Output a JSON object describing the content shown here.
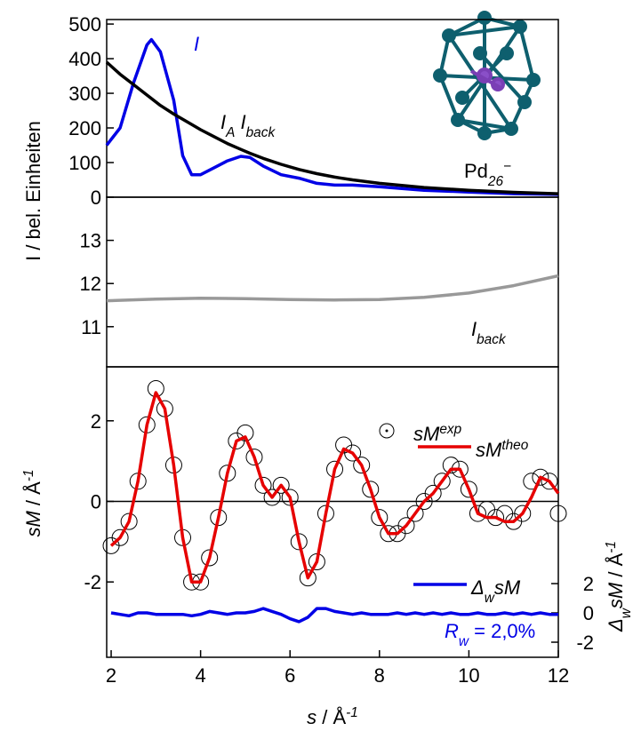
{
  "chart_data": [
    {
      "type": "line",
      "ylabel": [
        {
          "text": "I / bel. Einheiten"
        }
      ],
      "xlim": [
        1.9,
        12
      ],
      "ylim": [
        0,
        513
      ],
      "yticks": [
        0,
        100,
        200,
        300,
        400,
        500
      ],
      "x": [
        1.9,
        2.2,
        2.5,
        2.8,
        2.9,
        3.1,
        3.4,
        3.6,
        3.8,
        4.0,
        4.3,
        4.6,
        4.9,
        5.1,
        5.4,
        5.8,
        6.2,
        6.6,
        7,
        7.4,
        8,
        9,
        10,
        11,
        12
      ],
      "series": [
        {
          "color": "#0000e6",
          "values": [
            150,
            200,
            330,
            440,
            455,
            420,
            280,
            120,
            65,
            65,
            85,
            105,
            118,
            115,
            90,
            65,
            55,
            40,
            35,
            35,
            30,
            20,
            15,
            10,
            8
          ]
        },
        {
          "color": "#000000",
          "values": [
            390,
            355,
            325,
            295,
            285,
            265,
            240,
            225,
            210,
            195,
            175,
            155,
            138,
            127,
            112,
            95,
            80,
            68,
            58,
            50,
            40,
            28,
            20,
            14,
            10
          ]
        }
      ],
      "annotations": [
        {
          "color": "#0000e6",
          "parts": [
            {
              "text": "I",
              "style": "italic"
            }
          ]
        },
        {
          "color": "#000000",
          "parts": [
            {
              "text": "I",
              "style": "italic"
            },
            {
              "text": "A",
              "style": "sub"
            },
            {
              "text": " I",
              "style": "italic"
            },
            {
              "text": "back",
              "style": "sub"
            }
          ]
        },
        {
          "color": "#000000",
          "parts": [
            {
              "text": "Pd"
            },
            {
              "text": "26",
              "style": "sub"
            },
            {
              "text": "−",
              "style": "sup"
            }
          ]
        }
      ]
    },
    {
      "type": "line",
      "xlim": [
        1.9,
        12
      ],
      "ylim": [
        10.07,
        14
      ],
      "yticks": [
        11,
        12,
        13
      ],
      "x": [
        1.9,
        3,
        4,
        5,
        6,
        7,
        8,
        9,
        10,
        11,
        12
      ],
      "series": [
        {
          "color": "#999999",
          "values": [
            11.6,
            11.64,
            11.66,
            11.65,
            11.63,
            11.62,
            11.63,
            11.68,
            11.78,
            11.95,
            12.18
          ]
        }
      ],
      "annotations": [
        {
          "color": "#000000",
          "parts": [
            {
              "text": "I",
              "style": "italic"
            },
            {
              "text": "back",
              "style": "sub"
            }
          ]
        }
      ]
    },
    {
      "type": "line",
      "ylabel": [
        {
          "text": "sM",
          "style": "italic"
        },
        {
          "text": " / Å"
        },
        {
          "text": "-1",
          "style": "sup"
        }
      ],
      "y2label": [
        {
          "text": "Δ",
          "style": "italic"
        },
        {
          "text": "w",
          "style": "sub"
        },
        {
          "text": "sM",
          "style": "italic"
        },
        {
          "text": " / Å"
        },
        {
          "text": "-1",
          "style": "sup"
        }
      ],
      "xlabel": [
        {
          "text": "s",
          "style": "italic"
        },
        {
          "text": " / Å"
        },
        {
          "text": "-1",
          "style": "sup"
        }
      ],
      "xlim": [
        1.9,
        12
      ],
      "xticks": [
        2,
        4,
        6,
        8,
        10,
        12
      ],
      "ylim": [
        -3.87,
        3.34
      ],
      "yticks": [
        -2,
        0,
        2
      ],
      "y2lim": [
        -3.03,
        16.8
      ],
      "y2ticks": [
        -2,
        0,
        2
      ],
      "zero_line": true,
      "legend": "upper right",
      "x": [
        2.0,
        2.2,
        2.4,
        2.6,
        2.8,
        3.0,
        3.2,
        3.4,
        3.6,
        3.8,
        4.0,
        4.2,
        4.4,
        4.6,
        4.8,
        5.0,
        5.2,
        5.4,
        5.6,
        5.8,
        6.0,
        6.2,
        6.4,
        6.6,
        6.8,
        7.0,
        7.2,
        7.4,
        7.6,
        7.8,
        8.0,
        8.2,
        8.4,
        8.6,
        8.8,
        9.0,
        9.2,
        9.4,
        9.6,
        9.8,
        10.0,
        10.2,
        10.4,
        10.6,
        10.8,
        11.0,
        11.2,
        11.4,
        11.6,
        11.8,
        12.0
      ],
      "series": [
        {
          "name": [
            {
              "text": "sM",
              "style": "italic"
            },
            {
              "text": "exp",
              "style": "sup"
            }
          ],
          "color": "#000000",
          "marker": "circle",
          "values": [
            -1.1,
            -0.9,
            -0.5,
            0.5,
            1.9,
            2.8,
            2.3,
            0.9,
            -0.9,
            -2.0,
            -2.0,
            -1.4,
            -0.4,
            0.7,
            1.5,
            1.7,
            1.1,
            0.4,
            0.1,
            0.4,
            0.1,
            -1.0,
            -1.9,
            -1.5,
            -0.3,
            0.8,
            1.4,
            1.2,
            0.9,
            0.3,
            -0.4,
            -0.8,
            -0.8,
            -0.6,
            -0.3,
            0.0,
            0.2,
            0.5,
            0.9,
            0.8,
            0.3,
            -0.3,
            -0.2,
            -0.4,
            -0.3,
            -0.5,
            -0.3,
            0.5,
            0.6,
            0.5,
            -0.3
          ]
        },
        {
          "name": [
            {
              "text": "sM",
              "style": "italic"
            },
            {
              "text": "theo",
              "style": "sup"
            }
          ],
          "color": "#e60000",
          "values": [
            -1.1,
            -0.9,
            -0.5,
            0.5,
            1.9,
            2.7,
            2.3,
            0.9,
            -0.9,
            -2.0,
            -2.0,
            -1.4,
            -0.4,
            0.7,
            1.5,
            1.6,
            1.1,
            0.4,
            0.1,
            0.4,
            0.1,
            -1.0,
            -1.9,
            -1.5,
            -0.3,
            0.8,
            1.3,
            1.2,
            0.9,
            0.3,
            -0.4,
            -0.8,
            -0.8,
            -0.6,
            -0.3,
            0.0,
            0.2,
            0.5,
            0.8,
            0.8,
            0.3,
            -0.3,
            -0.4,
            -0.4,
            -0.5,
            -0.5,
            -0.3,
            0.1,
            0.6,
            0.5,
            0.2
          ]
        },
        {
          "name": [
            {
              "text": "Δ",
              "style": "italic"
            },
            {
              "text": "w",
              "style": "sub"
            },
            {
              "text": "sM",
              "style": "italic"
            }
          ],
          "color": "#0000e6",
          "axis": "y2",
          "values": [
            0.0,
            -0.1,
            -0.2,
            0.0,
            0.0,
            -0.1,
            -0.1,
            -0.1,
            -0.1,
            -0.2,
            -0.1,
            0.1,
            0.0,
            -0.1,
            0.0,
            0.0,
            0.1,
            0.3,
            0.1,
            -0.1,
            -0.4,
            -0.6,
            -0.3,
            0.3,
            0.3,
            0.1,
            0.0,
            -0.1,
            0.0,
            -0.1,
            -0.1,
            -0.1,
            0.0,
            -0.1,
            0.0,
            -0.1,
            0.0,
            -0.1,
            0.0,
            -0.1,
            -0.1,
            0.0,
            -0.1,
            -0.1,
            0.0,
            -0.1,
            0.0,
            -0.1,
            0.0,
            -0.1,
            -0.1
          ]
        }
      ],
      "annotations": [
        {
          "color": "#0000e6",
          "parts": [
            {
              "text": "R",
              "style": "italic"
            },
            {
              "text": "w",
              "style": "sub"
            },
            {
              "text": " = 2,0%"
            }
          ]
        }
      ]
    }
  ]
}
